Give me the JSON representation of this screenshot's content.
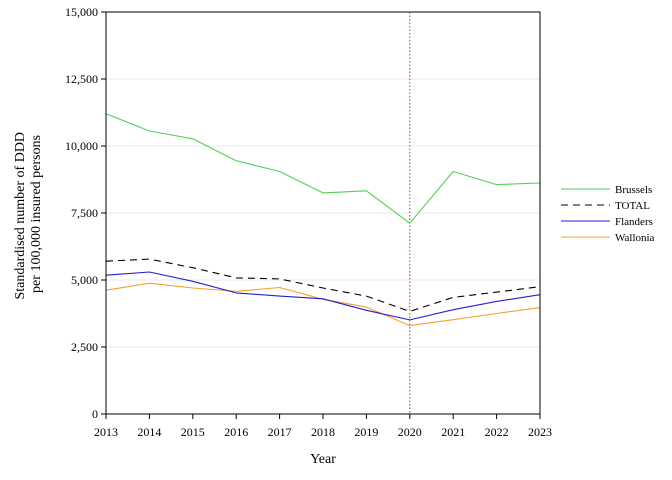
{
  "chart_data": {
    "type": "line",
    "xlabel": "Year",
    "ylabel": [
      "Standardised number of DDD",
      "per 100,000 insured persons"
    ],
    "x": [
      2013,
      2014,
      2015,
      2016,
      2017,
      2018,
      2019,
      2020,
      2021,
      2022,
      2023
    ],
    "x_tick_labels": [
      "2013",
      "2014",
      "2015",
      "2016",
      "2017",
      "2018",
      "2019",
      "2020",
      "2021",
      "2022",
      "2023"
    ],
    "xlim": [
      2013,
      2023
    ],
    "ylim": [
      0,
      15000
    ],
    "y_ticks": [
      0,
      2500,
      5000,
      7500,
      10000,
      12500,
      15000
    ],
    "y_tick_labels": [
      "0",
      "2,500",
      "5,000",
      "7,500",
      "10,000",
      "12,500",
      "15,000"
    ],
    "grid": "horizontal",
    "grid_color": "#e9e9e9",
    "reference_line": {
      "x": 2020,
      "color": "#c0304a",
      "style": "dotted"
    },
    "legend_position": "right",
    "series": [
      {
        "name": "Brussels",
        "color": "#55d055",
        "dash": "solid",
        "values": [
          11200,
          10560,
          10270,
          9450,
          9050,
          8250,
          8330,
          7120,
          9050,
          8560,
          8620
        ]
      },
      {
        "name": "TOTAL",
        "color": "#000000",
        "dash": "dashed",
        "values": [
          5700,
          5780,
          5460,
          5080,
          5040,
          4700,
          4400,
          3830,
          4350,
          4550,
          4750
        ]
      },
      {
        "name": "Flanders",
        "color": "#2020d8",
        "dash": "solid",
        "values": [
          5180,
          5300,
          4950,
          4520,
          4400,
          4300,
          3870,
          3510,
          3890,
          4200,
          4450
        ]
      },
      {
        "name": "Wallonia",
        "color": "#f5a030",
        "dash": "solid",
        "values": [
          4620,
          4880,
          4700,
          4580,
          4720,
          4280,
          3990,
          3300,
          3520,
          3750,
          3970
        ]
      }
    ]
  }
}
